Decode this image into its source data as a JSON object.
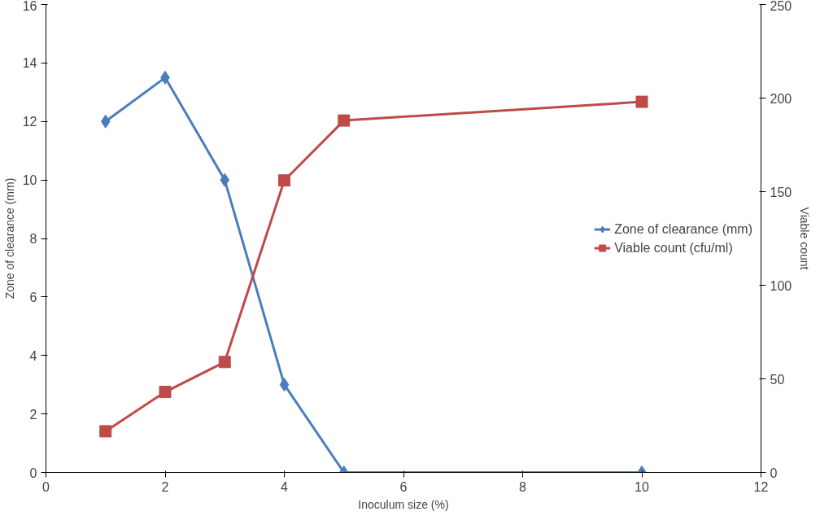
{
  "chart_data": {
    "type": "line",
    "xlabel": "Inoculum size (%)",
    "ylabel": "Zone of clearance (mm)",
    "y2label": "Viable count",
    "x": [
      1,
      2,
      3,
      4,
      5,
      10
    ],
    "series": [
      {
        "name": "Zone of clearance (mm)",
        "color": "#4a7ebb",
        "marker": "diamond",
        "values": [
          12,
          13.5,
          10,
          3,
          0,
          0
        ]
      },
      {
        "name": "Viable count (cfu/ml)",
        "color": "#be4b48",
        "marker": "square",
        "axis": "y2",
        "values": [
          22,
          43,
          59,
          156,
          188,
          198
        ]
      }
    ],
    "xlim": [
      0,
      12
    ],
    "xticks": [
      0,
      2,
      4,
      6,
      8,
      10,
      12
    ],
    "ylim": [
      0,
      16
    ],
    "yticks": [
      0,
      2,
      4,
      6,
      8,
      10,
      12,
      14,
      16
    ],
    "y2lim": [
      0,
      250
    ],
    "y2ticks": [
      0,
      50,
      100,
      150,
      200,
      250
    ],
    "grid": false,
    "legend": "right",
    "line_style": "solid"
  }
}
